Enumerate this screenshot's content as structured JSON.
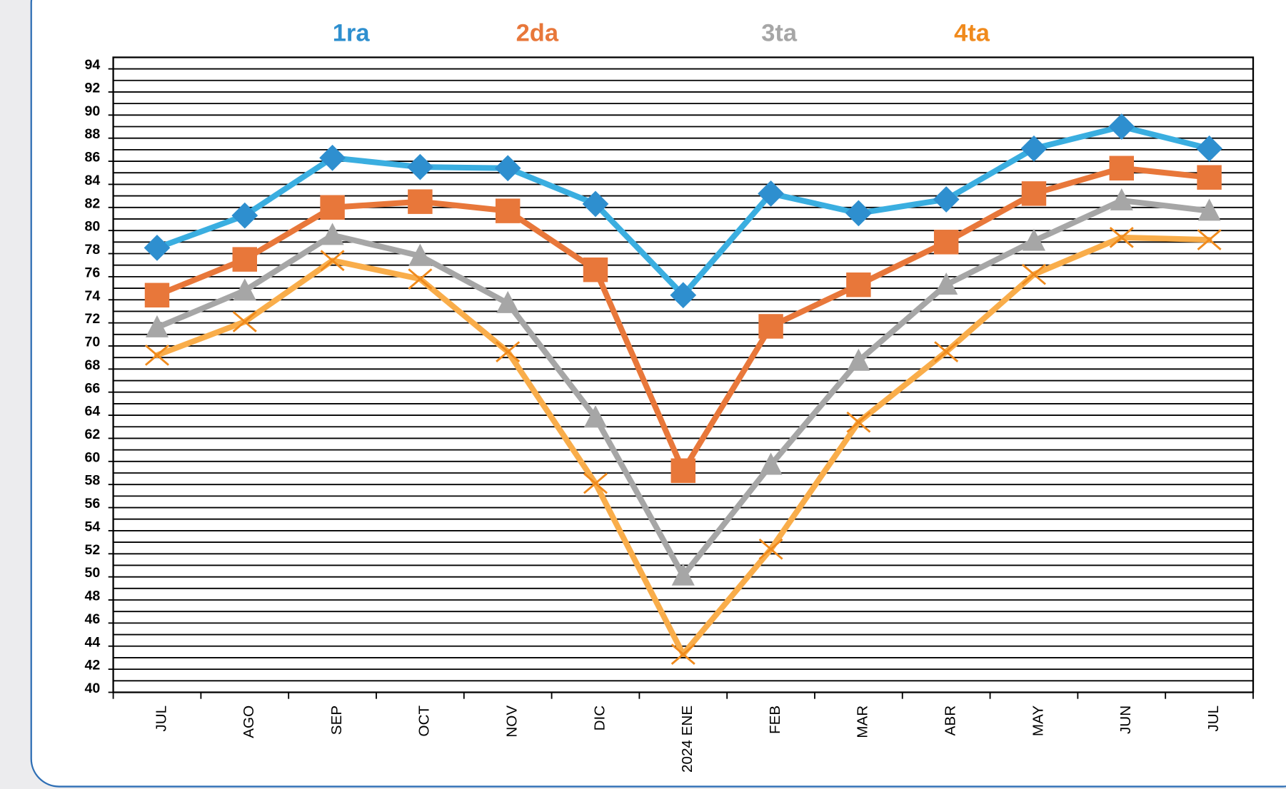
{
  "chart_data": {
    "type": "line",
    "categories": [
      "JUL",
      "AGO",
      "SEP",
      "OCT",
      "NOV",
      "DIC",
      "2024 ENE",
      "FEB",
      "MAR",
      "ABR",
      "MAY",
      "JUN",
      "JUL"
    ],
    "series": [
      {
        "name": "1ra",
        "color": "#2e8fcf",
        "line_color": "#3aaee0",
        "marker": "diamond",
        "values": [
          78.5,
          81.3,
          86.3,
          85.5,
          85.4,
          82.3,
          74.4,
          83.2,
          81.5,
          82.7,
          87.1,
          89.0,
          87.1
        ]
      },
      {
        "name": "2da",
        "color": "#e8773a",
        "line_color": "#e8773a",
        "marker": "square",
        "values": [
          74.4,
          77.5,
          82.0,
          82.5,
          81.7,
          76.6,
          59.2,
          71.7,
          75.3,
          79.0,
          83.2,
          85.4,
          84.6
        ]
      },
      {
        "name": "3ta",
        "color": "#a6a6a6",
        "line_color": "#a6a6a6",
        "marker": "triangle",
        "values": [
          71.6,
          74.8,
          79.6,
          77.8,
          73.7,
          63.8,
          50.1,
          59.7,
          68.7,
          75.3,
          79.1,
          82.6,
          81.7
        ]
      },
      {
        "name": "4ta",
        "color": "#f08a1c",
        "line_color": "#f9ad4a",
        "marker": "x",
        "values": [
          69.2,
          72.1,
          77.4,
          75.8,
          69.5,
          58.1,
          43.3,
          52.4,
          63.4,
          69.5,
          76.2,
          79.4,
          79.2
        ]
      }
    ],
    "ylim": [
      40,
      95
    ],
    "yticks": [
      40,
      42,
      44,
      46,
      48,
      50,
      52,
      54,
      56,
      58,
      60,
      62,
      64,
      66,
      68,
      70,
      72,
      74,
      76,
      78,
      80,
      82,
      84,
      86,
      88,
      90,
      92,
      94
    ],
    "y_minor_grid": [
      41,
      43,
      45,
      47,
      49,
      51,
      53,
      55,
      57,
      59,
      61,
      63,
      65,
      67,
      69,
      71,
      73,
      75,
      77,
      79,
      81,
      83,
      85,
      87,
      89,
      91,
      93
    ],
    "grid": true
  }
}
